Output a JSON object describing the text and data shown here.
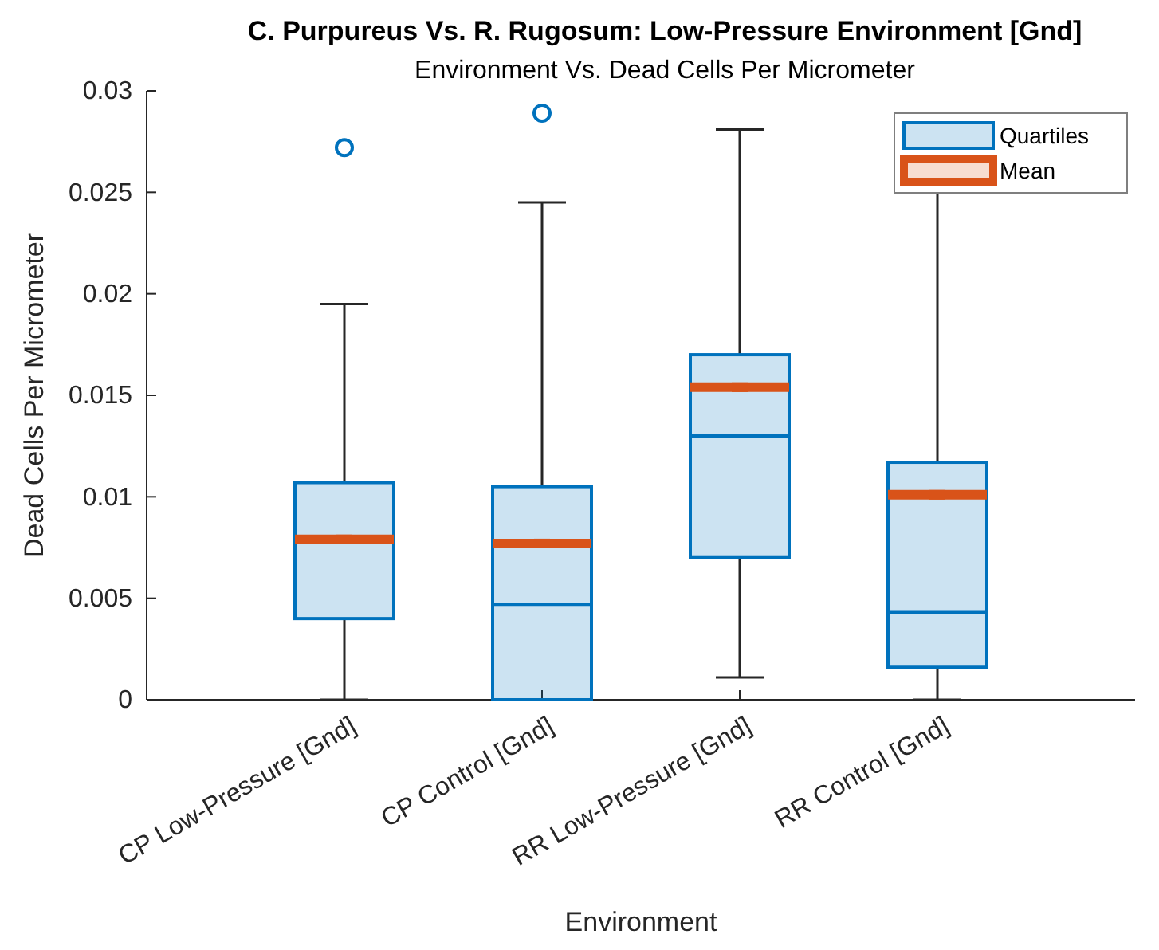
{
  "chart_data": {
    "type": "box",
    "title": "C. Purpureus Vs. R. Rugosum: Low-Pressure Environment [Gnd]",
    "subtitle": "Environment Vs. Dead Cells Per Micrometer",
    "xlabel": "Environment",
    "ylabel": "Dead Cells Per Micrometer",
    "categories": [
      "CP Low-Pressure [Gnd]",
      "CP Control [Gnd]",
      "RR Low-Pressure [Gnd]",
      "RR Control [Gnd]"
    ],
    "ylim": [
      0,
      0.03
    ],
    "yticks": [
      0,
      0.005,
      0.01,
      0.015,
      0.02,
      0.025,
      0.03
    ],
    "grid": false,
    "legend": "top right",
    "series": [
      {
        "name": "Quartiles",
        "color": "#0072bd",
        "boxes": [
          {
            "low": 0,
            "q1": 0.004,
            "median": 0.0079,
            "q3": 0.0107,
            "high": 0.0195,
            "outliers": [
              0.0272
            ]
          },
          {
            "low": 0,
            "q1": 0,
            "median": 0.0047,
            "q3": 0.0105,
            "high": 0.0245,
            "outliers": [
              0.0289
            ]
          },
          {
            "low": 0.0011,
            "q1": 0.007,
            "median": 0.013,
            "q3": 0.017,
            "high": 0.0281
          },
          {
            "low": 0,
            "q1": 0.0016,
            "median": 0.0043,
            "q3": 0.0117,
            "high": 0.0255
          }
        ]
      },
      {
        "name": "Mean",
        "type": "scatter",
        "color": "#d95319",
        "x": [
          "CP Low-Pressure [Gnd]",
          "CP Control [Gnd]",
          "RR Low-Pressure [Gnd]",
          "RR Control [Gnd]"
        ],
        "values": [
          0.0079,
          0.0077,
          0.0154,
          0.0101
        ]
      }
    ]
  }
}
